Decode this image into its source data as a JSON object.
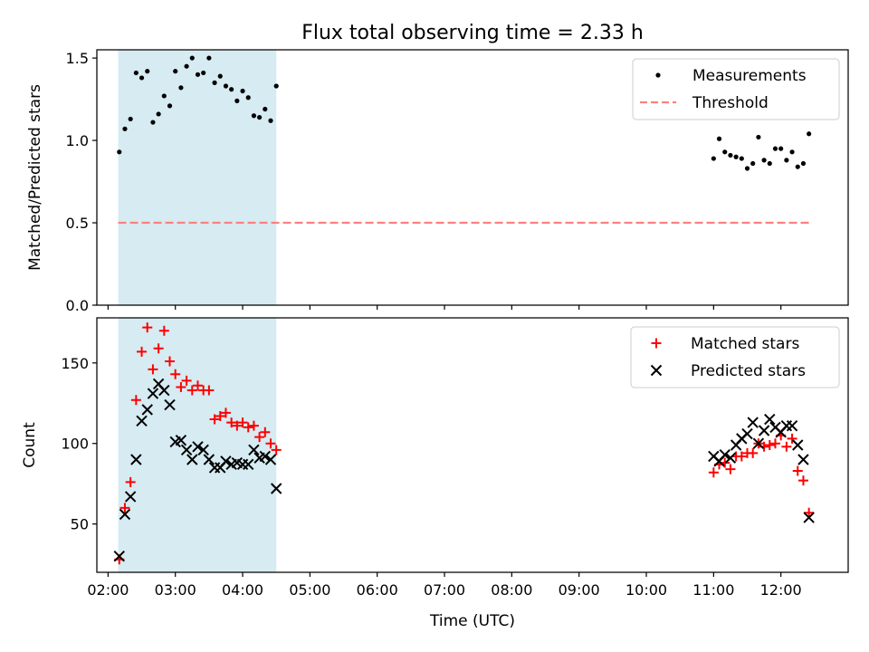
{
  "chart_data": [
    {
      "type": "scatter",
      "title": "Flux total observing time = 2.33 h",
      "xlabel": "",
      "ylabel": "Matched/Predicted stars",
      "ylim": [
        0,
        1.55
      ],
      "yticks": [
        "0.0",
        "0.5",
        "1.0",
        "1.5"
      ],
      "ytick_values": [
        0,
        0.5,
        1.0,
        1.5
      ],
      "shaded_region": {
        "x_start": "02:09",
        "x_end": "04:30",
        "color": "#add8e6"
      },
      "legend_position": "top-right",
      "grid": false,
      "series": [
        {
          "name": "Measurements",
          "marker": "dot",
          "color": "#000000",
          "points": [
            [
              "02:10",
              0.93
            ],
            [
              "02:15",
              1.07
            ],
            [
              "02:20",
              1.13
            ],
            [
              "02:25",
              1.41
            ],
            [
              "02:30",
              1.38
            ],
            [
              "02:35",
              1.42
            ],
            [
              "02:40",
              1.11
            ],
            [
              "02:45",
              1.16
            ],
            [
              "02:50",
              1.27
            ],
            [
              "02:55",
              1.21
            ],
            [
              "03:00",
              1.42
            ],
            [
              "03:05",
              1.32
            ],
            [
              "03:10",
              1.45
            ],
            [
              "03:15",
              1.5
            ],
            [
              "03:20",
              1.4
            ],
            [
              "03:25",
              1.41
            ],
            [
              "03:30",
              1.5
            ],
            [
              "03:35",
              1.35
            ],
            [
              "03:40",
              1.39
            ],
            [
              "03:45",
              1.33
            ],
            [
              "03:50",
              1.31
            ],
            [
              "03:55",
              1.24
            ],
            [
              "04:00",
              1.3
            ],
            [
              "04:05",
              1.26
            ],
            [
              "04:10",
              1.15
            ],
            [
              "04:15",
              1.14
            ],
            [
              "04:20",
              1.19
            ],
            [
              "04:25",
              1.12
            ],
            [
              "04:30",
              1.33
            ],
            [
              "11:00",
              0.89
            ],
            [
              "11:05",
              1.01
            ],
            [
              "11:10",
              0.93
            ],
            [
              "11:15",
              0.91
            ],
            [
              "11:20",
              0.9
            ],
            [
              "11:25",
              0.89
            ],
            [
              "11:30",
              0.83
            ],
            [
              "11:35",
              0.86
            ],
            [
              "11:40",
              1.02
            ],
            [
              "11:45",
              0.88
            ],
            [
              "11:50",
              0.86
            ],
            [
              "11:55",
              0.95
            ],
            [
              "12:00",
              0.95
            ],
            [
              "12:05",
              0.88
            ],
            [
              "12:10",
              0.93
            ],
            [
              "12:15",
              0.84
            ],
            [
              "12:20",
              0.86
            ],
            [
              "12:25",
              1.04
            ]
          ]
        },
        {
          "name": "Threshold",
          "marker": "dashed-line",
          "color": "#ff7f7f",
          "points": [
            [
              "02:09",
              0.5
            ],
            [
              "12:25",
              0.5
            ]
          ]
        }
      ]
    },
    {
      "type": "scatter",
      "title": "",
      "xlabel": "Time (UTC)",
      "ylabel": "Count",
      "ylim": [
        20,
        178
      ],
      "yticks": [
        "50",
        "100",
        "150"
      ],
      "ytick_values": [
        50,
        100,
        150
      ],
      "xlim": [
        "01:50",
        "13:00"
      ],
      "xticks": [
        "02:00",
        "03:00",
        "04:00",
        "05:00",
        "06:00",
        "07:00",
        "08:00",
        "09:00",
        "10:00",
        "11:00",
        "12:00"
      ],
      "shaded_region": {
        "x_start": "02:09",
        "x_end": "04:30",
        "color": "#add8e6"
      },
      "legend_position": "top-right",
      "grid": false,
      "series": [
        {
          "name": "Matched stars",
          "marker": "plus",
          "color": "#ff0000",
          "points": [
            [
              "02:10",
              28
            ],
            [
              "02:15",
              60
            ],
            [
              "02:20",
              76
            ],
            [
              "02:25",
              127
            ],
            [
              "02:30",
              157
            ],
            [
              "02:35",
              172
            ],
            [
              "02:40",
              146
            ],
            [
              "02:45",
              159
            ],
            [
              "02:50",
              170
            ],
            [
              "02:55",
              151
            ],
            [
              "03:00",
              143
            ],
            [
              "03:05",
              135
            ],
            [
              "03:10",
              139
            ],
            [
              "03:15",
              133
            ],
            [
              "03:20",
              136
            ],
            [
              "03:25",
              133
            ],
            [
              "03:30",
              133
            ],
            [
              "03:35",
              115
            ],
            [
              "03:40",
              117
            ],
            [
              "03:45",
              119
            ],
            [
              "03:50",
              113
            ],
            [
              "03:55",
              111
            ],
            [
              "04:00",
              113
            ],
            [
              "04:05",
              110
            ],
            [
              "04:10",
              111
            ],
            [
              "04:15",
              104
            ],
            [
              "04:20",
              107
            ],
            [
              "04:25",
              100
            ],
            [
              "04:30",
              96
            ],
            [
              "11:00",
              82
            ],
            [
              "11:05",
              87
            ],
            [
              "11:10",
              88
            ],
            [
              "11:15",
              84
            ],
            [
              "11:20",
              92
            ],
            [
              "11:25",
              92
            ],
            [
              "11:30",
              94
            ],
            [
              "11:35",
              94
            ],
            [
              "11:40",
              100
            ],
            [
              "11:45",
              98
            ],
            [
              "11:50",
              99
            ],
            [
              "11:55",
              100
            ],
            [
              "12:00",
              105
            ],
            [
              "12:05",
              98
            ],
            [
              "12:10",
              103
            ],
            [
              "12:15",
              83
            ],
            [
              "12:20",
              77
            ],
            [
              "12:25",
              57
            ]
          ]
        },
        {
          "name": "Predicted stars",
          "marker": "x",
          "color": "#000000",
          "points": [
            [
              "02:10",
              30
            ],
            [
              "02:15",
              56
            ],
            [
              "02:20",
              67
            ],
            [
              "02:25",
              90
            ],
            [
              "02:30",
              114
            ],
            [
              "02:35",
              121
            ],
            [
              "02:40",
              131
            ],
            [
              "02:45",
              137
            ],
            [
              "02:50",
              133
            ],
            [
              "02:55",
              124
            ],
            [
              "03:00",
              101
            ],
            [
              "03:05",
              102
            ],
            [
              "03:10",
              96
            ],
            [
              "03:15",
              90
            ],
            [
              "03:20",
              98
            ],
            [
              "03:25",
              96
            ],
            [
              "03:30",
              90
            ],
            [
              "03:35",
              85
            ],
            [
              "03:40",
              85
            ],
            [
              "03:45",
              89
            ],
            [
              "03:50",
              87
            ],
            [
              "03:55",
              88
            ],
            [
              "04:00",
              87
            ],
            [
              "04:05",
              87
            ],
            [
              "04:10",
              96
            ],
            [
              "04:15",
              91
            ],
            [
              "04:20",
              92
            ],
            [
              "04:25",
              90
            ],
            [
              "04:30",
              72
            ],
            [
              "11:00",
              92
            ],
            [
              "11:05",
              89
            ],
            [
              "11:10",
              93
            ],
            [
              "11:15",
              91
            ],
            [
              "11:20",
              99
            ],
            [
              "11:25",
              103
            ],
            [
              "11:30",
              106
            ],
            [
              "11:35",
              113
            ],
            [
              "11:40",
              100
            ],
            [
              "11:45",
              108
            ],
            [
              "11:50",
              115
            ],
            [
              "11:55",
              110
            ],
            [
              "12:00",
              107
            ],
            [
              "12:05",
              111
            ],
            [
              "12:10",
              111
            ],
            [
              "12:15",
              99
            ],
            [
              "12:20",
              90
            ],
            [
              "12:25",
              54
            ]
          ]
        }
      ]
    }
  ]
}
